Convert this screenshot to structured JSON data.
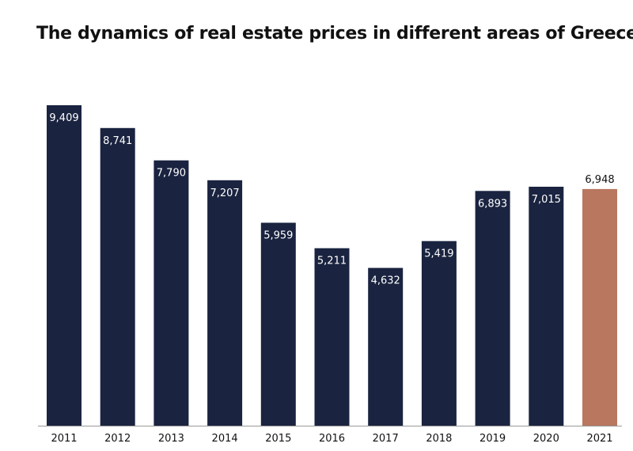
{
  "chart_data": {
    "type": "bar",
    "title": "The dynamics of real estate prices in different areas of Greece",
    "xlabel": "",
    "ylabel": "",
    "categories": [
      "2011",
      "2012",
      "2013",
      "2014",
      "2015",
      "2016",
      "2017",
      "2018",
      "2019",
      "2020",
      "2021"
    ],
    "values": [
      9409,
      8741,
      7790,
      7207,
      5959,
      5211,
      4632,
      5419,
      6893,
      7015,
      6948
    ],
    "value_labels": [
      "9,409",
      "8,741",
      "7,790",
      "7,207",
      "5,959",
      "5,211",
      "4,632",
      "5,419",
      "6,893",
      "7,015",
      "6,948"
    ],
    "ylim": [
      0,
      9409
    ],
    "grid": false,
    "legend": "none",
    "colors": {
      "default_bar": "#1a2440",
      "highlight_bar": "#b8775e",
      "inside_label": "#ffffff",
      "outside_label": "#111111",
      "axis_line": "#999999"
    },
    "highlight_index": 10
  }
}
